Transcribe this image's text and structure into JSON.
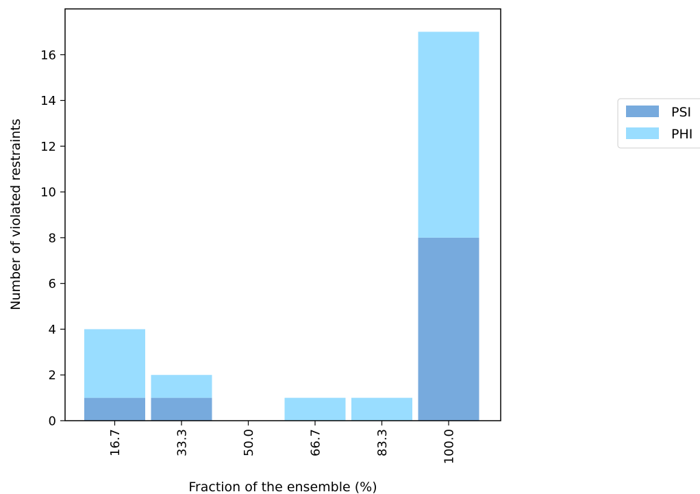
{
  "chart_data": {
    "type": "bar",
    "stacked": true,
    "categories": [
      "16.7",
      "33.3",
      "50.0",
      "66.7",
      "83.3",
      "100.0"
    ],
    "series": [
      {
        "name": "PSI",
        "color": "#77aadd",
        "values": [
          1,
          1,
          0,
          0,
          0,
          8
        ]
      },
      {
        "name": "PHI",
        "color": "#99ddff",
        "values": [
          3,
          1,
          0,
          1,
          1,
          9
        ]
      }
    ],
    "xlabel": "Fraction of the ensemble (%)",
    "ylabel": "Number of violated restraints",
    "ylim": [
      0,
      18
    ],
    "yticks": [
      "0",
      "2",
      "4",
      "6",
      "8",
      "10",
      "12",
      "14",
      "16"
    ],
    "grid": false,
    "legend_position": "right"
  }
}
